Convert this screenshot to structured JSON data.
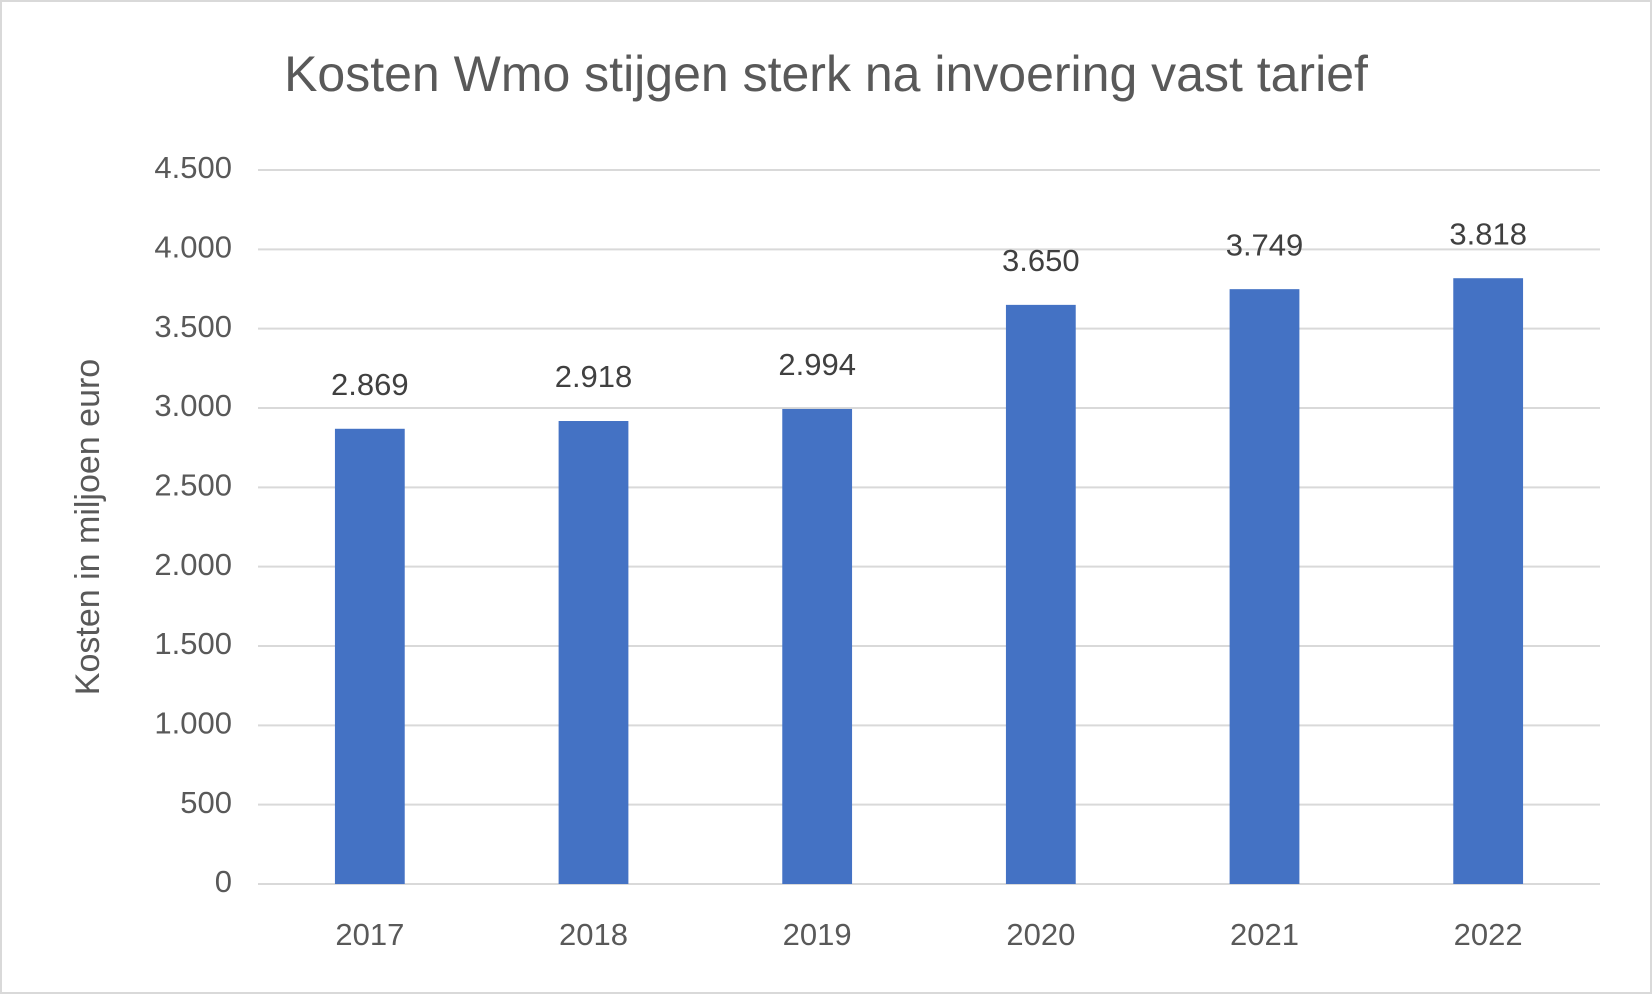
{
  "chart_data": {
    "type": "bar",
    "title": "Kosten Wmo stijgen sterk na invoering vast tarief",
    "y_label": "Kosten in miljoen euro",
    "categories": [
      "2017",
      "2018",
      "2019",
      "2020",
      "2021",
      "2022"
    ],
    "values": [
      2869,
      2918,
      2994,
      3650,
      3749,
      3818
    ],
    "value_labels": [
      "2.869",
      "2.918",
      "2.994",
      "3.650",
      "3.749",
      "3.818"
    ],
    "color": "#4472c4",
    "ylim": [
      0,
      4500
    ],
    "yticks": [
      0,
      500,
      {
        "value": 1000,
        "label": "1.000"
      },
      {
        "value": 1500,
        "label": "1.500"
      },
      {
        "value": 2000,
        "label": "2.000"
      },
      {
        "value": 2500,
        "label": "2.500"
      },
      {
        "value": 3000,
        "label": "3.000"
      },
      {
        "value": 3500,
        "label": "3.500"
      },
      {
        "value": 4000,
        "label": "4.000"
      },
      {
        "value": 4500,
        "label": "4.500"
      }
    ],
    "grid": true
  }
}
